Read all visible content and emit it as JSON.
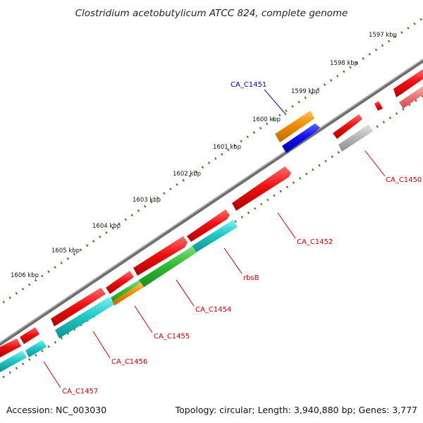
{
  "title": "Clostridium acetobutylicum ATCC 824, complete genome",
  "footer": {
    "accession": "Accession: NC_003030",
    "topology": "Topology: circular; Length: 3,940,880 bp; Genes: 3,777"
  },
  "kbp_labels": [
    "1597 kbp",
    "1598 kbp",
    "1599 kbp",
    "1600 kbp",
    "1601 kbp",
    "1602 kbp",
    "1603 kbp",
    "1604 kbp",
    "1605 kbp",
    "1606 kbp"
  ],
  "gene_labels": [
    {
      "text": "CA_C1451",
      "color": "#0000cc"
    },
    {
      "text": "CA_C1450",
      "color": "#cc0000"
    },
    {
      "text": "CA_C1452",
      "color": "#cc0000"
    },
    {
      "text": "rbsB",
      "color": "#cc0000"
    },
    {
      "text": "CA_C1454",
      "color": "#cc0000"
    },
    {
      "text": "CA_C1455",
      "color": "#cc0000"
    },
    {
      "text": "CA_C1456",
      "color": "#cc0000"
    },
    {
      "text": "CA_C1457",
      "color": "#cc0000"
    }
  ],
  "colors": {
    "cds": "#ee1111",
    "rrna_like": "#22c8c8",
    "green": "#33bb33",
    "orange": "#f28c00",
    "blue": "#1010ee",
    "grey": "#b8b8b8",
    "pink": "#ee7777",
    "backbone": "#888888",
    "ticks": "#2a7a1a"
  }
}
